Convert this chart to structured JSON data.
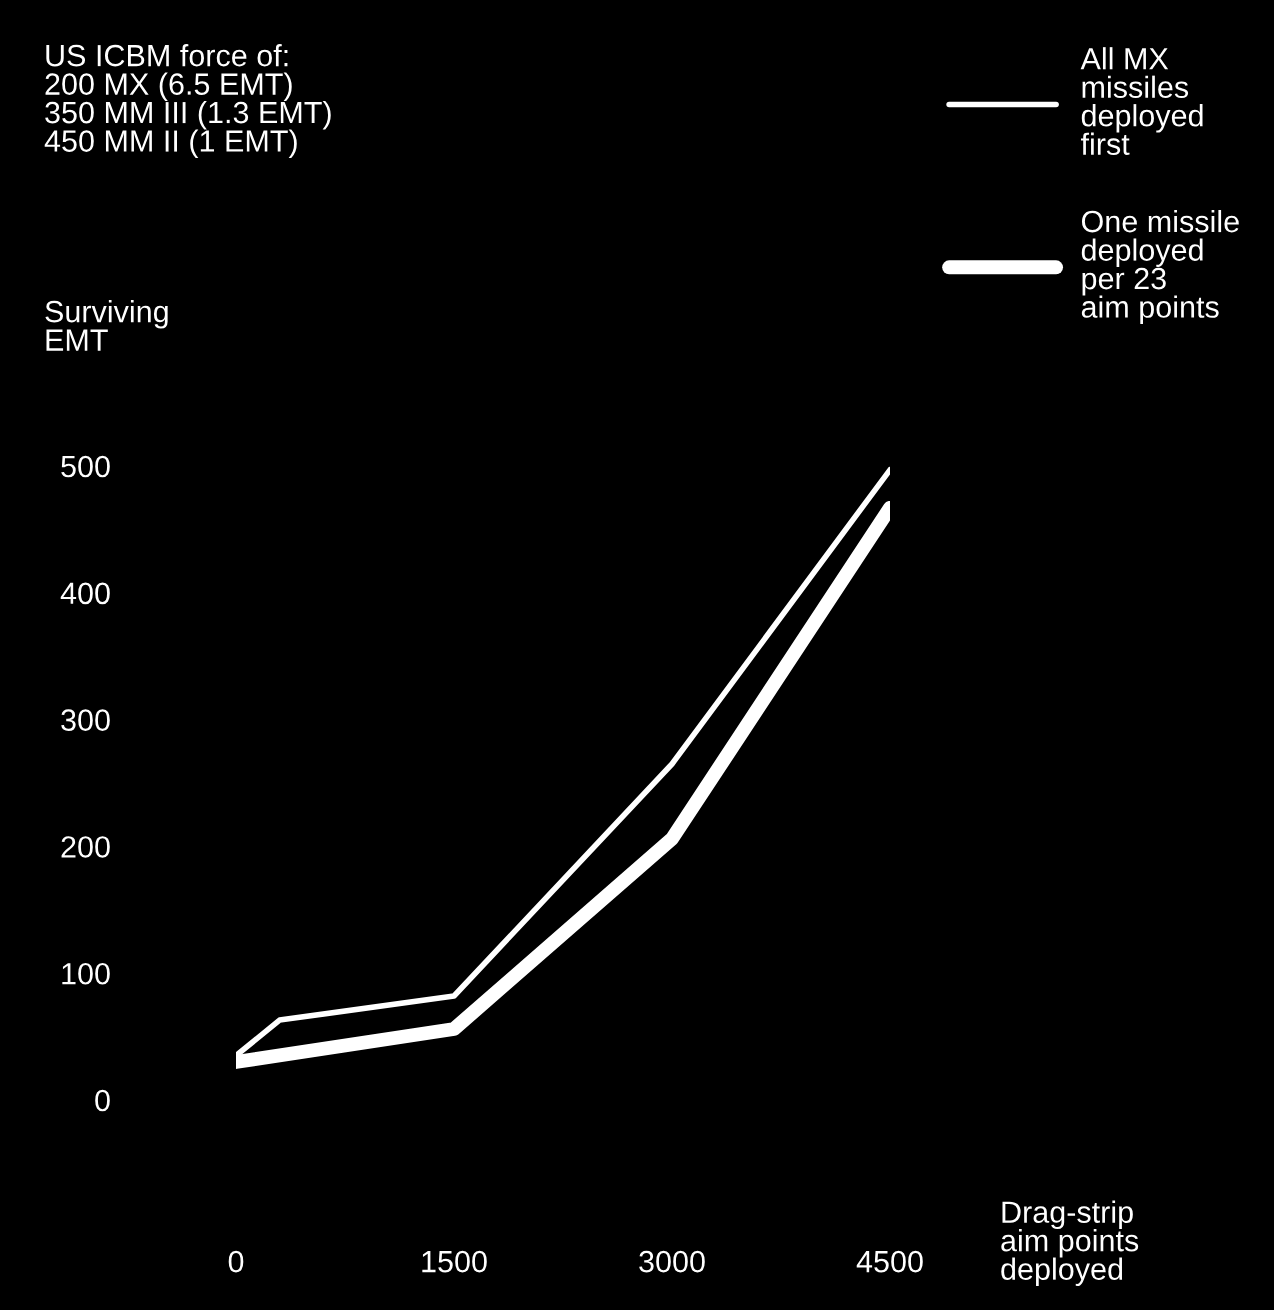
{
  "chart_data": {
    "type": "line",
    "title": "US ICBM force of:\n200 MX (6.5 EMT)\n350 MM III (1.3 EMT)\n450 MM II (1 EMT)",
    "ylabel": "Surviving\nEMT",
    "xlabel": "Drag-strip\naim points\ndeployed",
    "series": [
      {
        "name": "All MX\nmissiles\ndeployed\nfirst",
        "color": "#ffffff",
        "x": [
          0,
          300,
          1500,
          3000,
          4500
        ],
        "values": [
          35,
          63,
          82,
          265,
          497
        ]
      },
      {
        "name": "One missile\ndeployed\nper 23\naim points",
        "color": "#ffffff",
        "x": [
          0,
          1500,
          3000,
          4500
        ],
        "values": [
          30,
          56,
          206,
          467
        ]
      }
    ],
    "xlim": [
      0,
      4500
    ],
    "xticks": [
      0,
      1500,
      3000,
      4500
    ],
    "ylim": [
      0,
      500
    ],
    "yticks": [
      0,
      100,
      200,
      300,
      400,
      500
    ],
    "grid": false,
    "legend": "top right",
    "marker": "none",
    "line_style": "solid"
  }
}
